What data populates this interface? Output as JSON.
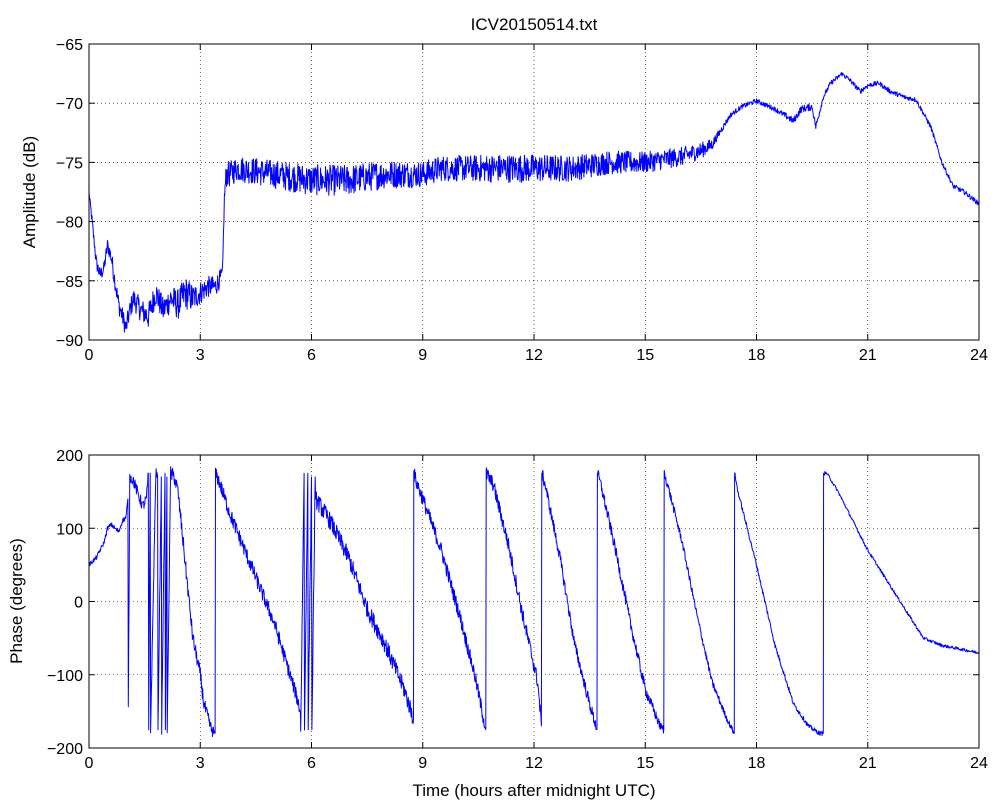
{
  "figure": {
    "title": "ICV20150514.txt"
  },
  "chart_data": [
    {
      "type": "line",
      "title": "ICV20150514.txt",
      "xlabel": "",
      "ylabel": "Amplitude (dB)",
      "xlim": [
        0,
        24
      ],
      "ylim": [
        -90,
        -65
      ],
      "xticks": [
        0,
        3,
        6,
        9,
        12,
        15,
        18,
        21,
        24
      ],
      "yticks": [
        -90,
        -85,
        -80,
        -75,
        -70,
        -65
      ],
      "xtick_labels": [
        "0",
        "3",
        "6",
        "9",
        "12",
        "15",
        "18",
        "21",
        "24"
      ],
      "ytick_labels": [
        "−90",
        "−85",
        "−80",
        "−75",
        "−70",
        "−65"
      ],
      "grid": true,
      "line_color": "#0000ff",
      "series": [
        {
          "x": [
            0,
            0.1,
            0.2,
            0.3,
            0.4,
            0.5,
            0.6,
            0.7,
            0.8,
            0.9,
            1.0,
            1.1,
            1.2,
            1.4,
            1.6,
            1.8,
            2.0,
            2.2,
            2.4,
            2.6,
            2.8,
            3.0,
            3.2,
            3.4,
            3.6,
            3.65,
            3.7,
            3.8,
            4.0,
            5,
            6,
            7,
            8,
            9,
            9.5,
            10,
            11,
            12,
            13,
            14,
            15,
            16,
            16.5,
            16.8,
            17.0,
            17.3,
            17.6,
            18.0,
            18.5,
            19.0,
            19.2,
            19.5,
            19.6,
            19.8,
            20.0,
            20.2,
            20.3,
            20.5,
            20.8,
            21.0,
            21.3,
            21.6,
            22.0,
            22.3,
            22.7,
            23.0,
            23.3,
            23.6,
            24.0
          ],
          "y": [
            -77.5,
            -80.5,
            -83.5,
            -84.5,
            -84.0,
            -82.0,
            -83.0,
            -85.0,
            -87.0,
            -88.0,
            -89.0,
            -87.5,
            -86.5,
            -87.5,
            -88.0,
            -86.0,
            -87.5,
            -86.5,
            -87.0,
            -86.0,
            -86.5,
            -86.0,
            -85.5,
            -85.5,
            -84.5,
            -78.0,
            -76.0,
            -76.0,
            -75.5,
            -76.0,
            -76.5,
            -76.5,
            -76.0,
            -76.0,
            -75.5,
            -75.5,
            -75.5,
            -75.5,
            -75.5,
            -75.0,
            -75.0,
            -74.5,
            -74.0,
            -73.5,
            -72.5,
            -71.0,
            -70.3,
            -69.8,
            -70.5,
            -71.5,
            -70.5,
            -70.3,
            -72.0,
            -69.5,
            -68.3,
            -67.8,
            -67.5,
            -68.0,
            -69.0,
            -68.5,
            -68.3,
            -69.0,
            -69.5,
            -69.7,
            -72.0,
            -75.0,
            -77.0,
            -77.5,
            -78.5
          ],
          "noise": [
            0.3,
            0.5,
            0.6,
            0.6,
            0.6,
            0.6,
            0.7,
            0.8,
            0.8,
            0.8,
            0.8,
            0.8,
            0.9,
            1.0,
            1.1,
            1.1,
            1.1,
            1.2,
            1.3,
            1.4,
            1.2,
            1.0,
            0.9,
            0.9,
            0.7,
            0.6,
            1.1,
            1.1,
            1.1,
            1.2,
            1.3,
            1.3,
            1.2,
            1.1,
            1.1,
            1.1,
            1.2,
            1.2,
            1.1,
            1.0,
            0.9,
            0.8,
            0.7,
            0.5,
            0.3,
            0.2,
            0.2,
            0.2,
            0.2,
            0.3,
            0.3,
            0.3,
            0.3,
            0.2,
            0.2,
            0.2,
            0.2,
            0.2,
            0.2,
            0.2,
            0.2,
            0.2,
            0.2,
            0.2,
            0.2,
            0.2,
            0.2,
            0.2,
            0.2
          ]
        }
      ]
    },
    {
      "type": "line",
      "title": "",
      "xlabel": "Time (hours after midnight UTC)",
      "ylabel": "Phase (degrees)",
      "xlim": [
        0,
        24
      ],
      "ylim": [
        -200,
        200
      ],
      "xticks": [
        0,
        3,
        6,
        9,
        12,
        15,
        18,
        21,
        24
      ],
      "yticks": [
        -200,
        -100,
        0,
        100,
        200
      ],
      "xtick_labels": [
        "0",
        "3",
        "6",
        "9",
        "12",
        "15",
        "18",
        "21",
        "24"
      ],
      "ytick_labels": [
        "−200",
        "−100",
        "0",
        "100",
        "200"
      ],
      "grid": true,
      "line_color": "#0000ff",
      "series": [
        {
          "x": [
            0,
            0.2,
            0.4,
            0.5,
            0.6,
            0.7,
            0.8,
            0.9,
            1.0,
            1.05,
            1.06,
            1.1,
            1.2,
            1.3,
            1.45,
            1.55,
            1.6,
            1.61,
            1.65,
            1.66,
            1.8,
            1.85,
            1.86,
            1.95,
            1.96,
            2.05,
            2.06,
            2.1,
            2.11,
            2.2,
            2.3,
            2.4,
            2.5,
            2.6,
            2.8,
            3.0,
            3.1,
            3.3,
            3.4,
            3.41,
            3.5,
            3.8,
            4.2,
            4.6,
            5.0,
            5.3,
            5.6,
            5.7,
            5.71,
            5.8,
            5.81,
            5.9,
            5.91,
            6.0,
            6.01,
            6.1,
            6.11,
            6.5,
            7.0,
            7.5,
            8.0,
            8.5,
            8.75,
            8.76,
            8.85,
            9.0,
            9.5,
            10.0,
            10.4,
            10.7,
            10.71,
            10.9,
            11.3,
            11.7,
            12.1,
            12.2,
            12.21,
            12.3,
            12.7,
            13.1,
            13.5,
            13.7,
            13.71,
            13.8,
            14.2,
            14.6,
            15.0,
            15.4,
            15.5,
            15.51,
            15.6,
            16.0,
            16.4,
            16.8,
            17.2,
            17.4,
            17.41,
            17.5,
            18.0,
            18.5,
            19.0,
            19.4,
            19.7,
            19.8,
            19.81,
            19.9,
            20.2,
            20.5,
            21.0,
            21.5,
            22.0,
            22.5,
            23.0,
            23.5,
            24.0
          ],
          "y": [
            50,
            60,
            80,
            100,
            105,
            100,
            95,
            110,
            115,
            140,
            -140,
            170,
            165,
            150,
            130,
            140,
            175,
            -175,
            175,
            -175,
            175,
            170,
            -175,
            170,
            -175,
            175,
            -175,
            170,
            -175,
            175,
            170,
            150,
            100,
            50,
            -50,
            -100,
            -140,
            -175,
            -180,
            175,
            165,
            120,
            70,
            20,
            -30,
            -80,
            -130,
            -150,
            -175,
            175,
            -175,
            175,
            -175,
            170,
            -175,
            170,
            140,
            110,
            60,
            -10,
            -60,
            -120,
            -160,
            175,
            160,
            140,
            70,
            -20,
            -100,
            -175,
            175,
            160,
            80,
            -20,
            -110,
            -170,
            175,
            160,
            60,
            -60,
            -140,
            -175,
            175,
            160,
            70,
            -30,
            -120,
            -170,
            -175,
            175,
            160,
            80,
            -20,
            -110,
            -160,
            -180,
            175,
            150,
            50,
            -60,
            -140,
            -170,
            -180,
            -180,
            175,
            175,
            150,
            120,
            70,
            30,
            -10,
            -50,
            -60,
            -65,
            -70
          ],
          "noise": [
            3,
            3,
            3,
            3,
            3,
            3,
            3,
            3,
            4,
            4,
            4,
            6,
            8,
            8,
            8,
            8,
            8,
            8,
            8,
            8,
            8,
            8,
            8,
            8,
            8,
            8,
            8,
            8,
            8,
            10,
            10,
            10,
            10,
            10,
            10,
            10,
            10,
            8,
            8,
            8,
            10,
            10,
            10,
            10,
            10,
            10,
            10,
            10,
            10,
            10,
            10,
            10,
            10,
            12,
            12,
            12,
            12,
            12,
            12,
            12,
            12,
            12,
            12,
            10,
            10,
            10,
            10,
            10,
            10,
            10,
            10,
            10,
            10,
            10,
            10,
            10,
            10,
            8,
            8,
            8,
            8,
            8,
            8,
            8,
            8,
            8,
            8,
            6,
            6,
            6,
            6,
            5,
            5,
            5,
            4,
            4,
            4,
            3,
            3,
            3,
            3,
            3,
            3,
            3,
            3,
            2,
            2,
            2,
            2,
            2,
            2,
            2,
            2,
            2,
            2
          ]
        }
      ]
    }
  ]
}
